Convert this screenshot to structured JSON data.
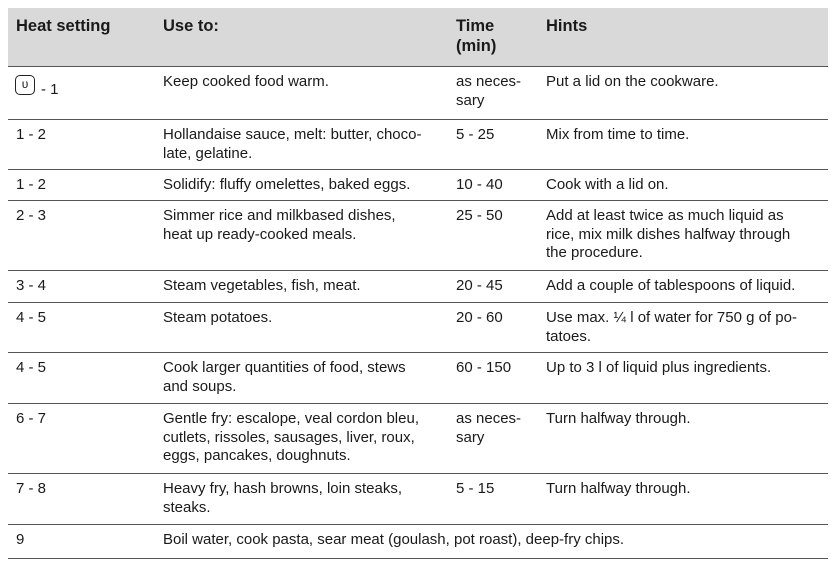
{
  "table": {
    "header": [
      "Heat setting",
      "Use to:",
      [
        "Time",
        "(min)"
      ],
      "Hints"
    ],
    "rows": [
      {
        "heat": "- 1",
        "use": [
          "Keep cooked food warm."
        ],
        "time": [
          "as neces-",
          "sary"
        ],
        "hints": [
          "Put a lid on the cookware."
        ]
      },
      {
        "heat": "1 - 2",
        "use": [
          "Hollandaise sauce, melt: butter, choco-",
          "late, gelatine."
        ],
        "time": [
          "5 - 25"
        ],
        "hints": [
          "Mix from time to time."
        ]
      },
      {
        "heat": "1 - 2",
        "use": [
          "Solidify: fluffy omelettes, baked eggs."
        ],
        "time": [
          "10 - 40"
        ],
        "hints": [
          "Cook with a lid on."
        ]
      },
      {
        "heat": "2 - 3",
        "use": [
          "Simmer rice and milkbased dishes,",
          "heat up ready-cooked meals."
        ],
        "time": [
          "25 - 50"
        ],
        "hints": [
          "Add at least twice as much liquid as",
          "rice, mix milk dishes halfway through",
          "the procedure."
        ]
      },
      {
        "heat": "3 - 4",
        "use": [
          "Steam vegetables, fish, meat."
        ],
        "time": [
          "20 - 45"
        ],
        "hints": [
          "Add a couple of tablespoons of liquid."
        ]
      },
      {
        "heat": "4 - 5",
        "use": [
          "Steam potatoes."
        ],
        "time": [
          "20 - 60"
        ],
        "hints": [
          "Use max. ¼ l of water for 750 g of po-",
          "tatoes."
        ]
      },
      {
        "heat": "4 - 5",
        "use": [
          "Cook larger quantities of food, stews",
          "and soups."
        ],
        "time": [
          "60 - 150"
        ],
        "hints": [
          "Up to 3 l of liquid plus ingredients."
        ]
      },
      {
        "heat": "6 - 7",
        "use": [
          "Gentle fry: escalope, veal cordon bleu,",
          "cutlets, rissoles, sausages, liver, roux,",
          "eggs, pancakes, doughnuts."
        ],
        "time": [
          "as neces-",
          "sary"
        ],
        "hints": [
          "Turn halfway through."
        ]
      },
      {
        "heat": "7 - 8",
        "use": [
          "Heavy fry, hash browns, loin steaks,",
          "steaks."
        ],
        "time": [
          "5 - 15"
        ],
        "hints": [
          "Turn halfway through."
        ]
      },
      {
        "heat": "9",
        "use": [
          "Boil water, cook pasta, sear meat (goulash, pot roast), deep-fry chips."
        ]
      }
    ]
  }
}
